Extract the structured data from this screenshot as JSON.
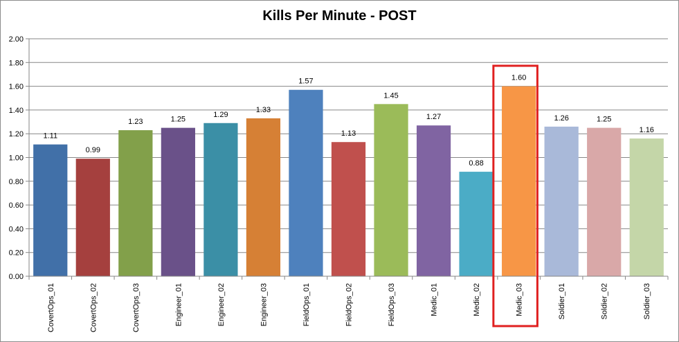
{
  "chart_data": {
    "type": "bar",
    "title": "Kills Per Minute - POST",
    "xlabel": "",
    "ylabel": "",
    "ylim": [
      0,
      2.0
    ],
    "yticks": [
      "0.00",
      "0.20",
      "0.40",
      "0.60",
      "0.80",
      "1.00",
      "1.20",
      "1.40",
      "1.60",
      "1.80",
      "2.00"
    ],
    "grid": true,
    "legend": "none",
    "categories": [
      "CovertOps_01",
      "CovertOps_02",
      "CovertOps_03",
      "Engineer_01",
      "Engineer_02",
      "Engineer_03",
      "FieldOps_01",
      "FieldOps_02",
      "FieldOps_03",
      "Medic_01",
      "Medic_02",
      "Medic_03",
      "Soldier_01",
      "Soldier_02",
      "Soldier_03"
    ],
    "values": [
      1.11,
      0.99,
      1.23,
      1.25,
      1.29,
      1.33,
      1.57,
      1.13,
      1.45,
      1.27,
      0.88,
      1.6,
      1.26,
      1.25,
      1.16
    ],
    "value_labels": [
      "1.11",
      "0.99",
      "1.23",
      "1.25",
      "1.29",
      "1.33",
      "1.57",
      "1.13",
      "1.45",
      "1.27",
      "0.88",
      "1.60",
      "1.26",
      "1.25",
      "1.16"
    ],
    "colors": [
      "#4170a8",
      "#a5403e",
      "#82a04a",
      "#6a5189",
      "#3b8fa6",
      "#d68035",
      "#4e81bd",
      "#c0504d",
      "#9bbb59",
      "#8064a2",
      "#4bacc6",
      "#f79646",
      "#a9b9d9",
      "#d9a8a8",
      "#c4d6a8"
    ],
    "highlighted_category": "Medic_03",
    "highlight_color": "#e02020"
  }
}
